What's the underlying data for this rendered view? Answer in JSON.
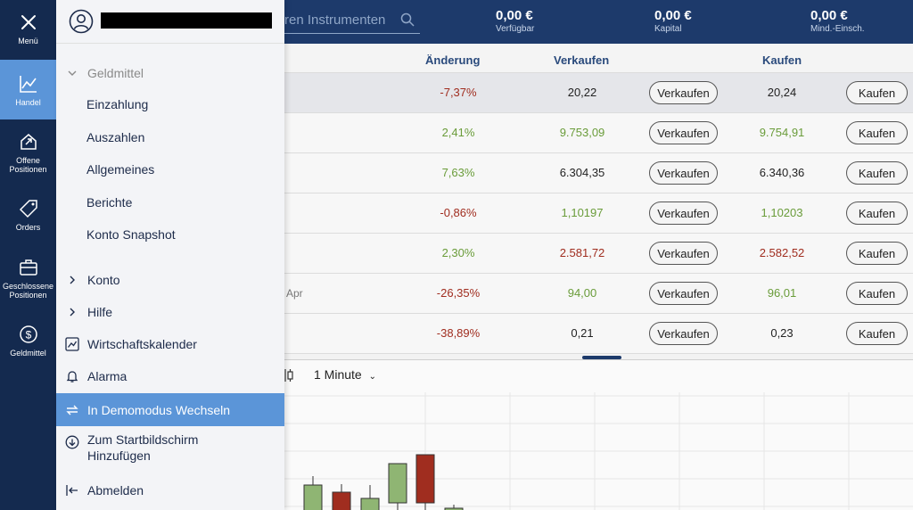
{
  "rail": {
    "items": [
      {
        "id": "menu",
        "label": "Menü",
        "icon": "close-icon"
      },
      {
        "id": "handel",
        "label": "Handel",
        "icon": "chart-line-icon"
      },
      {
        "id": "offene",
        "label": "Offene Positionen",
        "icon": "house-arrow-icon"
      },
      {
        "id": "orders",
        "label": "Orders",
        "icon": "tag-icon"
      },
      {
        "id": "geschlossene",
        "label": "Geschlossene Positionen",
        "icon": "briefcase-icon"
      },
      {
        "id": "geldmittel",
        "label": "Geldmittel",
        "icon": "dollar-circle-icon"
      }
    ]
  },
  "topbar": {
    "search_placeholder": "ren Instrumenten",
    "stats": [
      {
        "value": "0,00 €",
        "caption": "Verfügbar"
      },
      {
        "value": "0,00 €",
        "caption": "Kapital"
      },
      {
        "value": "0,00 €",
        "caption": "Mind.-Einsch."
      }
    ]
  },
  "table": {
    "headers": {
      "change": "Änderung",
      "sell": "Verkaufen",
      "buy": "Kaufen"
    },
    "sell_button": "Verkaufen",
    "buy_button": "Kaufen",
    "rows": [
      {
        "sub": "",
        "change": "-7,37%",
        "sell": "20,22",
        "buy": "20,24"
      },
      {
        "sub": "",
        "change": "2,41%",
        "sell": "9.753,09",
        "buy": "9.754,91"
      },
      {
        "sub": "",
        "change": "7,63%",
        "sell": "6.304,35",
        "buy": "6.340,36"
      },
      {
        "sub": "",
        "change": "-0,86%",
        "sell": "1,10197",
        "buy": "1,10203"
      },
      {
        "sub": "",
        "change": "2,30%",
        "sell": "2.581,72",
        "buy": "2.582,52"
      },
      {
        "sub": "Apr",
        "change": "-26,35%",
        "sell": "94,00",
        "buy": "96,01"
      },
      {
        "sub": "",
        "change": "-38,89%",
        "sell": "0,21",
        "buy": "0,23"
      }
    ]
  },
  "chart": {
    "timeframe": "1 Minute",
    "candles": [
      {
        "color": "green"
      },
      {
        "color": "red"
      },
      {
        "color": "green"
      },
      {
        "color": "green"
      },
      {
        "color": "red"
      },
      {
        "color": "green"
      }
    ]
  },
  "menu": {
    "items": [
      {
        "label": "Geldmittel",
        "icon": "chevron-down-icon"
      },
      {
        "label": "Einzahlung"
      },
      {
        "label": "Auszahlen"
      },
      {
        "label": "Allgemeines"
      },
      {
        "label": "Berichte"
      },
      {
        "label": "Konto Snapshot"
      },
      {
        "label": "Konto",
        "icon": "chevron-right-icon"
      },
      {
        "label": "Hilfe",
        "icon": "chevron-right-icon"
      },
      {
        "label": "Wirtschaftskalender",
        "icon": "calendar-chart-icon"
      },
      {
        "label": "Alarma",
        "icon": "bell-icon"
      },
      {
        "label": "In Demomodus Wechseln",
        "icon": "swap-icon"
      },
      {
        "label": "Zum Startbildschirm Hinzufügen",
        "icon": "download-circle-icon"
      },
      {
        "label": "Abmelden",
        "icon": "logout-icon"
      }
    ]
  },
  "colors": {
    "rail_bg": "#142a4f",
    "topbar_bg": "#1d3a6b",
    "accent": "#5b95d8",
    "positive": "#6a9c3a",
    "negative": "#a02d1f"
  }
}
